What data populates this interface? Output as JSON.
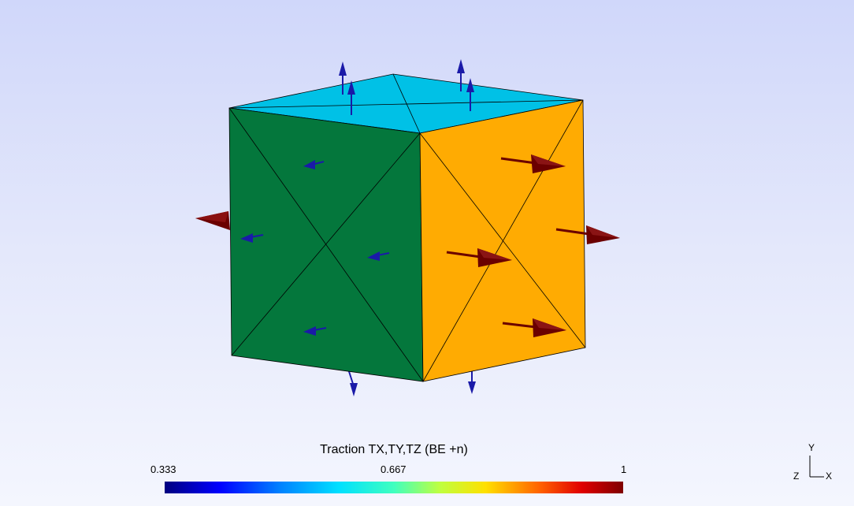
{
  "legend": {
    "title": "Traction TX,TY,TZ (BE +n)",
    "min_label": "0.333",
    "mid_label": "0.667",
    "max_label": "1",
    "colormap": [
      "#00007f",
      "#0000ff",
      "#0080ff",
      "#00e0ff",
      "#40ffbf",
      "#bfff40",
      "#ffe000",
      "#ff6000",
      "#e00000",
      "#7f0000"
    ]
  },
  "axes_triad": {
    "x": "X",
    "y": "Y",
    "z": "Z"
  },
  "colors": {
    "top_face": "#00c1e6",
    "left_face": "#04773c",
    "right_face": "#ffab02",
    "arrow_low": "#1a1aa8",
    "arrow_high": "#6b0000",
    "background_top": "#d0d7fa",
    "background_bottom": "#f4f6fe"
  }
}
